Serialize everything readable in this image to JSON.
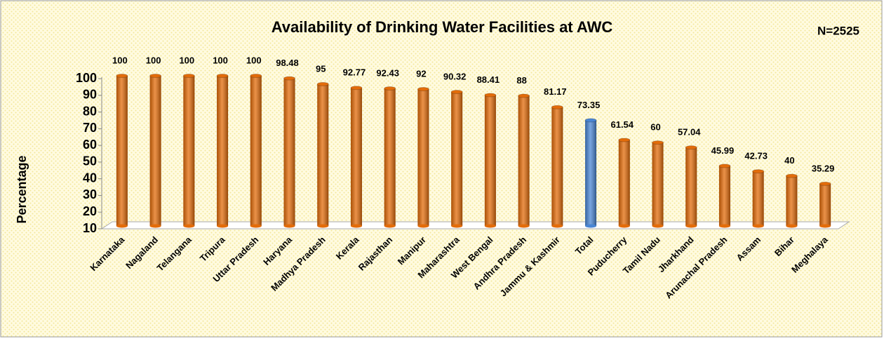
{
  "chart_data": {
    "type": "bar",
    "title": "Availability of Drinking Water Facilities at AWC",
    "annotation": "N=2525",
    "y_label": "Percentage",
    "categories": [
      "Karnataka",
      "Nagaland",
      "Telangana",
      "Tripura",
      "Uttar Pradesh",
      "Haryana",
      "Madhya Pradesh",
      "Kerala",
      "Rajasthan",
      "Manipur",
      "Maharashtra",
      "West Bengal",
      "Andhra Pradesh",
      "Jammu & Kashmir",
      "Total",
      "Puducherry",
      "Tamil Nadu",
      "Jharkhand",
      "Arunachal Pradesh",
      "Assam",
      "Bihar",
      "Meghalaya"
    ],
    "values": [
      100,
      100,
      100,
      100,
      100,
      98.48,
      95,
      92.77,
      92.43,
      92,
      90.32,
      88.41,
      88,
      81.17,
      73.35,
      61.54,
      60,
      57.04,
      45.99,
      42.73,
      40,
      35.29
    ],
    "colors": [
      "#e36c0a",
      "#e36c0a",
      "#e36c0a",
      "#e36c0a",
      "#e36c0a",
      "#e36c0a",
      "#e36c0a",
      "#e36c0a",
      "#e36c0a",
      "#e36c0a",
      "#e36c0a",
      "#e36c0a",
      "#e36c0a",
      "#e36c0a",
      "#4a86d4",
      "#e36c0a",
      "#e36c0a",
      "#e36c0a",
      "#e36c0a",
      "#e36c0a",
      "#e36c0a",
      "#e36c0a"
    ],
    "ylim": [
      10,
      100
    ],
    "yticks": [
      10,
      20,
      30,
      40,
      50,
      60,
      70,
      80,
      90,
      100
    ]
  }
}
